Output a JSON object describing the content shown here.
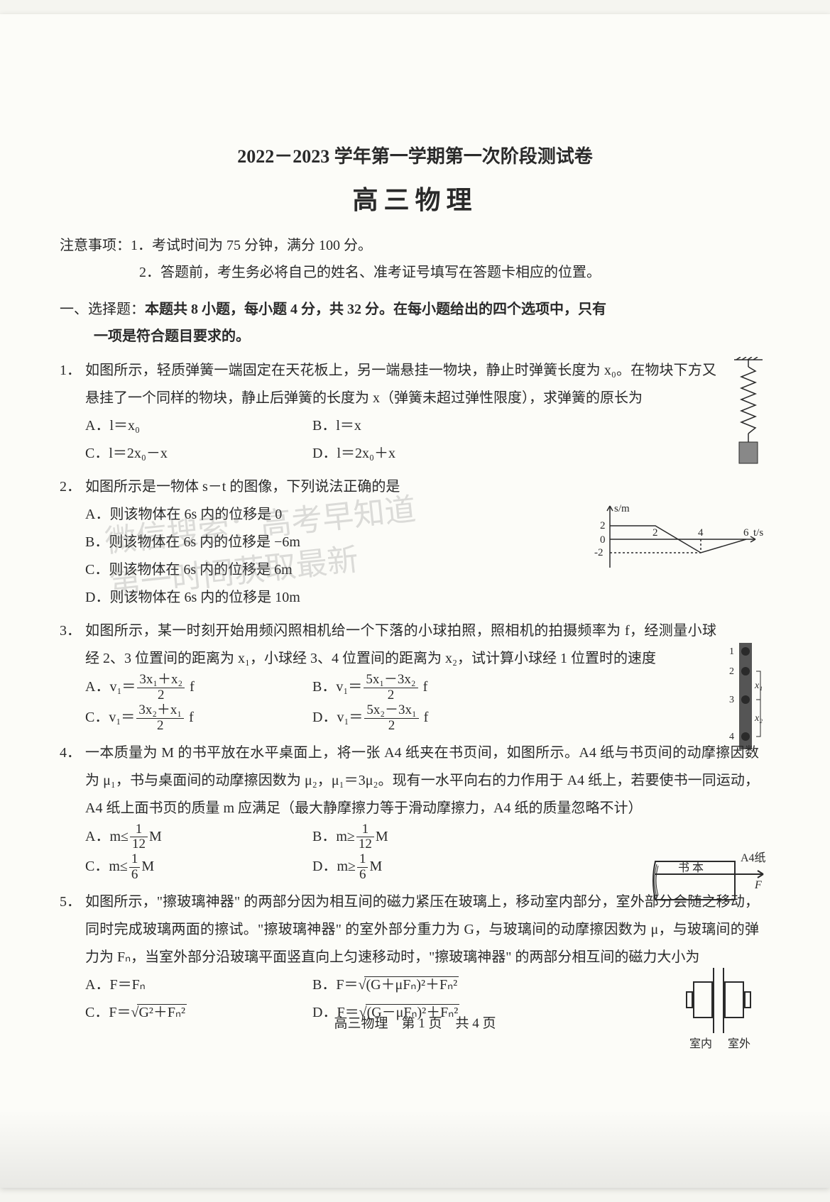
{
  "header": {
    "title_main": "2022－2023 学年第一学期第一次阶段测试卷",
    "title_sub": "高三物理"
  },
  "notes": {
    "label": "注意事项：",
    "item1": "1．考试时间为 75 分钟，满分 100 分。",
    "item2": "2．答题前，考生务必将自己的姓名、准考证号填写在答题卡相应的位置。"
  },
  "section1": {
    "line1_pre": "一、选择题：",
    "line1_bold": "本题共 8 小题，每小题 4 分，共 32 分。在每小题给出的四个选项中，只有",
    "line2_bold": "一项是符合题目要求的。"
  },
  "q1": {
    "num": "1．",
    "stem": "如图所示，轻质弹簧一端固定在天花板上，另一端悬挂一物块，静止时弹簧长度为 x₀。在物块下方又悬挂了一个同样的物块，静止后弹簧的长度为 x（弹簧未超过弹性限度），求弹簧的原长为",
    "A": "A．l＝x₀",
    "B": "B．l＝x",
    "C": "C．l＝2x₀－x",
    "D": "D．l＝2x₀＋x",
    "fig": {
      "hatch_y": 0,
      "spring_color": "#2a2a2a",
      "block_color": "#888888"
    }
  },
  "q2": {
    "num": "2．",
    "stem": "如图所示是一物体 s－t 的图像，下列说法正确的是",
    "A": "A．则该物体在 6s 内的位移是 0",
    "B": "B．则该物体在 6s 内的位移是 −6m",
    "C": "C．则该物体在 6s 内的位移是 6m",
    "D": "D．则该物体在 6s 内的位移是 10m",
    "fig": {
      "ylabel": "s/m",
      "xlabel": "t/s",
      "y_ticks": [
        "2",
        "0",
        "-2"
      ],
      "x_ticks": [
        "2",
        "4",
        "6"
      ],
      "points": [
        [
          0,
          2
        ],
        [
          2,
          2
        ],
        [
          4,
          -2
        ],
        [
          6,
          0
        ]
      ],
      "axis_color": "#2a2a2a",
      "line_color": "#2a2a2a"
    }
  },
  "q3": {
    "num": "3．",
    "stem": "如图所示，某一时刻开始用频闪照相机给一个下落的小球拍照，照相机的拍摄频率为 f，经测量小球经 2、3 位置间的距离为 x₁，小球经 3、4 位置间的距离为 x₂，试计算小球经 1 位置时的速度",
    "A_html": "A．v₁＝<span class='frac'><span class='n'>3x₁＋x₂</span><span class='d'>2</span></span> f",
    "B_html": "B．v₁＝<span class='frac'><span class='n'>5x₁－3x₂</span><span class='d'>2</span></span> f",
    "C_html": "C．v₁＝<span class='frac'><span class='n'>3x₂＋x₁</span><span class='d'>2</span></span> f",
    "D_html": "D．v₁＝<span class='frac'><span class='n'>5x₂－3x₁</span><span class='d'>2</span></span> f",
    "fig": {
      "labels": [
        "1",
        "2",
        "3",
        "4"
      ],
      "x1_label": "x₁",
      "x2_label": "x₂",
      "ball_color": "#2a2a2a",
      "bar_color": "#555555"
    }
  },
  "q4": {
    "num": "4．",
    "stem": "一本质量为 M 的书平放在水平桌面上，将一张 A4 纸夹在书页间，如图所示。A4 纸与书页间的动摩擦因数为 μ₁，书与桌面间的动摩擦因数为 μ₂，μ₁＝3μ₂。现有一水平向右的力作用于 A4 纸上，若要使书一同运动，A4 纸上面书页的质量 m 应满足（最大静摩擦力等于滑动摩擦力，A4 纸的质量忽略不计）",
    "A_html": "A．m≤<span class='frac'><span class='n'>1</span><span class='d'>12</span></span>M",
    "B_html": "B．m≥<span class='frac'><span class='n'>1</span><span class='d'>12</span></span>M",
    "C_html": "C．m≤<span class='frac'><span class='n'>1</span><span class='d'>6</span></span>M",
    "D_html": "D．m≥<span class='frac'><span class='n'>1</span><span class='d'>6</span></span>M",
    "fig": {
      "book_label": "书 本",
      "a4_label": "A4纸",
      "f_label": "F",
      "line_color": "#2a2a2a"
    }
  },
  "q5": {
    "num": "5．",
    "stem": "如图所示，\"擦玻璃神器\" 的两部分因为相互间的磁力紧压在玻璃上，移动室内部分，室外部分会随之移动，同时完成玻璃两面的擦试。\"擦玻璃神器\" 的室外部分重力为 G，与玻璃间的动摩擦因数为 μ，与玻璃间的弹力为 Fₙ，当室外部分沿玻璃平面竖直向上匀速移动时，\"擦玻璃神器\" 的两部分相互间的磁力大小为",
    "A": "A．F＝Fₙ",
    "B_html": "B．F＝<span class='root'></span><span class='sqrt'>(G＋μFₙ)²＋Fₙ²</span>",
    "C_html": "C．F＝<span class='root'></span><span class='sqrt'>G²＋Fₙ²</span>",
    "D_html": "D．F＝<span class='root'></span><span class='sqrt'>(G－μFₙ)²＋Fₙ²</span>",
    "fig": {
      "inside_label": "室内",
      "outside_label": "室外",
      "line_color": "#2a2a2a"
    }
  },
  "footer": {
    "text": "高三物理　第 1 页　共 4 页"
  },
  "watermark": {
    "line1": "微信搜索：高考早知道",
    "line2": "第一时间获取最新"
  }
}
